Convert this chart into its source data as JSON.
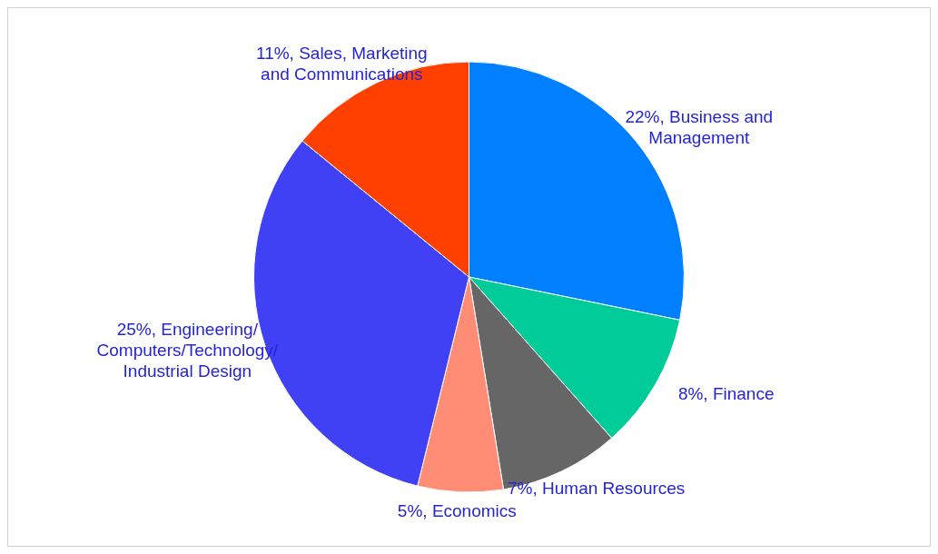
{
  "chart_data": {
    "type": "pie",
    "categories": [
      "Business and Management",
      "Finance",
      "Human Resources",
      "Economics",
      "Engineering/Computers/Technology/Industrial Design",
      "Sales, Marketing and Communications"
    ],
    "values": [
      22,
      8,
      7,
      5,
      25,
      11
    ],
    "value_labels": [
      "22%",
      "8%",
      "7%",
      "5%",
      "25%",
      "11%"
    ],
    "colors": [
      "#0080ff",
      "#00cc99",
      "#666666",
      "#ff8c75",
      "#4040f5",
      "#ff4000"
    ],
    "legend": false
  }
}
